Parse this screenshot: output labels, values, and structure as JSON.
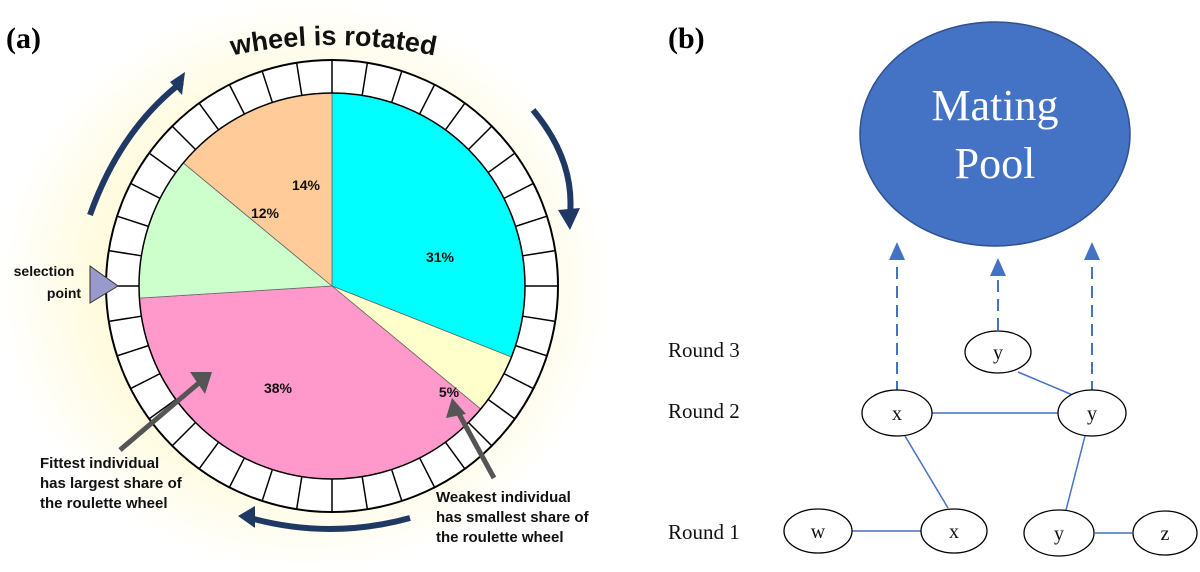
{
  "panel_a": {
    "label": "(a)",
    "title": "wheel is rotated",
    "pointer_label_1": "selection",
    "pointer_label_2": "point",
    "slices": [
      {
        "name": "cyan",
        "pct": 31,
        "label": "31%",
        "color": "#00ffff"
      },
      {
        "name": "yellow",
        "pct": 5,
        "label": "5%",
        "color": "#ffffcc"
      },
      {
        "name": "pink",
        "pct": 38,
        "label": "38%",
        "color": "#ff99cc"
      },
      {
        "name": "green",
        "pct": 12,
        "label": "12%",
        "color": "#ccffcc"
      },
      {
        "name": "orange",
        "pct": 14,
        "label": "14%",
        "color": "#ffcc99"
      }
    ],
    "fittest": [
      "Fittest individual",
      "has largest share of",
      "the roulette wheel"
    ],
    "weakest": [
      "Weakest individual",
      "has smallest share of",
      "the roulette wheel"
    ],
    "arrow_color": "#1f3864",
    "background_glow": "#fffbd6"
  },
  "panel_b": {
    "label": "(b)",
    "pool_line1": "Mating",
    "pool_line2": "Pool",
    "pool_color": "#4472c4",
    "edge_color": "#4472c4",
    "rounds": [
      "Round 3",
      "Round 2",
      "Round 1"
    ],
    "nodes": {
      "r3_y": "y",
      "r2_x": "x",
      "r2_y": "y",
      "r1_w": "w",
      "r1_x": "x",
      "r1_y": "y",
      "r1_z": "z"
    }
  }
}
